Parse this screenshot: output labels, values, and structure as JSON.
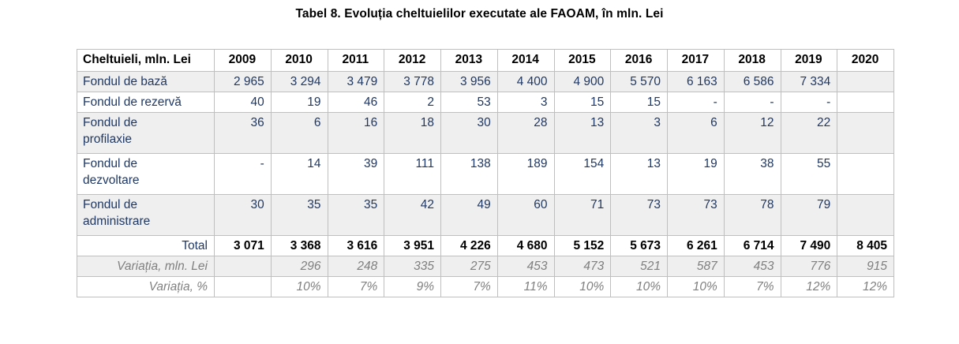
{
  "title": "Tabel 8. Evoluția cheltuielilor executate ale FAOAM, în mln. Lei",
  "colors": {
    "body_text": "#1F3864",
    "header_text": "#000000",
    "variation_text": "#808080",
    "stripe_background": "#EFEFEF",
    "border": "#BFBFBF"
  },
  "table": {
    "columns": [
      "Cheltuieli, mln. Lei",
      "2009",
      "2010",
      "2011",
      "2012",
      "2013",
      "2014",
      "2015",
      "2016",
      "2017",
      "2018",
      "2019",
      "2020"
    ],
    "rows": [
      {
        "label": "Fondul de bază",
        "type": "fund",
        "values": [
          "2 965",
          "3 294",
          "3 479",
          "3 778",
          "3 956",
          "4 400",
          "4 900",
          "5 570",
          "6 163",
          "6 586",
          "7 334",
          ""
        ]
      },
      {
        "label": "Fondul de rezervă",
        "type": "fund",
        "values": [
          "40",
          "19",
          "46",
          "2",
          "53",
          "3",
          "15",
          "15",
          "-",
          "-",
          "-",
          ""
        ]
      },
      {
        "label": "Fondul de\nprofilaxie",
        "type": "fund",
        "values": [
          "36",
          "6",
          "16",
          "18",
          "30",
          "28",
          "13",
          "3",
          "6",
          "12",
          "22",
          ""
        ]
      },
      {
        "label": "Fondul de\ndezvoltare",
        "type": "fund",
        "values": [
          "-",
          "14",
          "39",
          "111",
          "138",
          "189",
          "154",
          "13",
          "19",
          "38",
          "55",
          ""
        ]
      },
      {
        "label": "Fondul de\nadministrare",
        "type": "fund",
        "values": [
          "30",
          "35",
          "35",
          "42",
          "49",
          "60",
          "71",
          "73",
          "73",
          "78",
          "79",
          ""
        ]
      },
      {
        "label": "Total",
        "type": "total",
        "values": [
          "3 071",
          "3 368",
          "3 616",
          "3 951",
          "4 226",
          "4 680",
          "5 152",
          "5 673",
          "6 261",
          "6 714",
          "7 490",
          "8 405"
        ]
      },
      {
        "label": "Variația, mln. Lei",
        "type": "variation",
        "values": [
          "",
          "296",
          "248",
          "335",
          "275",
          "453",
          "473",
          "521",
          "587",
          "453",
          "776",
          "915"
        ]
      },
      {
        "label": "Variația, %",
        "type": "variation",
        "values": [
          "",
          "10%",
          "7%",
          "9%",
          "7%",
          "11%",
          "10%",
          "10%",
          "10%",
          "7%",
          "12%",
          "12%"
        ]
      }
    ]
  }
}
